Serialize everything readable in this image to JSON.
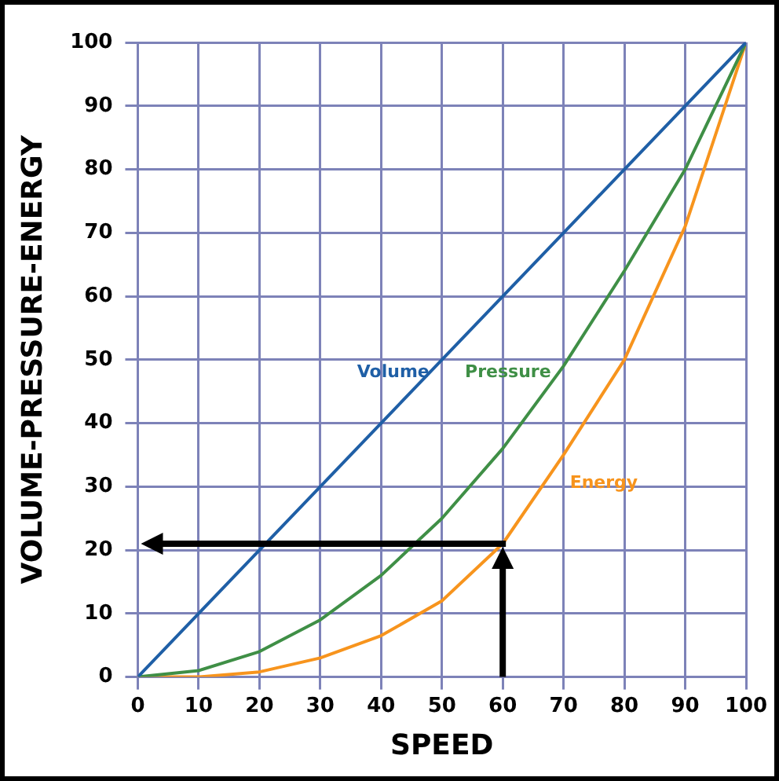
{
  "chart_data": {
    "type": "line",
    "xlabel": "SPEED",
    "ylabel": "VOLUME-PRESSURE-ENERGY",
    "x": [
      0,
      10,
      20,
      30,
      40,
      50,
      60,
      70,
      80,
      90,
      100
    ],
    "series": [
      {
        "name": "Volume",
        "color": "#1f5fa6",
        "values": [
          0,
          10,
          20,
          30,
          40,
          50,
          60,
          70,
          80,
          90,
          100
        ]
      },
      {
        "name": "Pressure",
        "color": "#3f8f46",
        "values": [
          0,
          1,
          4,
          9,
          16,
          25,
          36,
          49,
          64,
          80,
          100
        ]
      },
      {
        "name": "Energy",
        "color": "#f7941d",
        "values": [
          0,
          0,
          0.8,
          3,
          6.5,
          12,
          21,
          35,
          50,
          71,
          100
        ]
      }
    ],
    "xlim": [
      0,
      100
    ],
    "ylim": [
      0,
      100
    ],
    "xticks": [
      0,
      10,
      20,
      30,
      40,
      50,
      60,
      70,
      80,
      90,
      100
    ],
    "yticks": [
      0,
      10,
      20,
      30,
      40,
      50,
      60,
      70,
      80,
      90,
      100
    ],
    "grid": true,
    "legend": false,
    "marker": "none",
    "line_style": "solid"
  }
}
